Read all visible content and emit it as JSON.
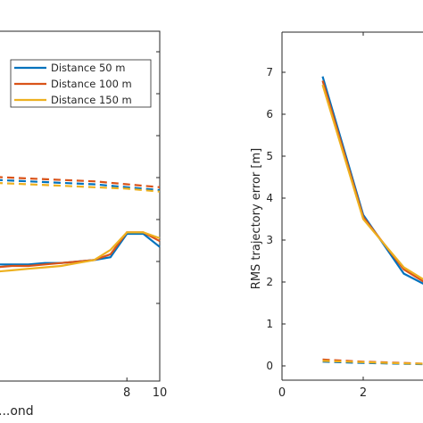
{
  "chart_data": [
    {
      "type": "line",
      "title": "",
      "xlabel": "...ond",
      "ylabel": "",
      "xlim": [
        0,
        10
      ],
      "x_tick_labels": [
        "8",
        "10"
      ],
      "x_ticks": [
        8,
        10
      ],
      "y_ticks_count": 7,
      "grid": false,
      "legend_position": "top-right",
      "series": [
        {
          "name": "Distance 50 m",
          "color": "#0072BD",
          "style": "solid",
          "x": [
            0,
            1,
            2,
            3,
            4,
            5,
            6,
            7,
            8,
            9,
            10
          ],
          "y": [
            2.35,
            2.35,
            2.35,
            2.36,
            2.36,
            2.37,
            2.38,
            2.4,
            2.56,
            2.56,
            2.47
          ]
        },
        {
          "name": "Distance 100 m",
          "color": "#D95319",
          "style": "solid",
          "x": [
            0,
            1,
            2,
            3,
            4,
            5,
            6,
            7,
            8,
            9,
            10
          ],
          "y": [
            2.33,
            2.34,
            2.34,
            2.35,
            2.36,
            2.37,
            2.38,
            2.42,
            2.57,
            2.57,
            2.51
          ]
        },
        {
          "name": "Distance 150 m",
          "color": "#EDB120",
          "style": "solid",
          "x": [
            0,
            1,
            2,
            3,
            4,
            5,
            6,
            7,
            8,
            9,
            10
          ],
          "y": [
            2.3,
            2.31,
            2.32,
            2.33,
            2.34,
            2.36,
            2.38,
            2.45,
            2.57,
            2.57,
            2.53
          ]
        },
        {
          "name": "",
          "color": "#0072BD",
          "style": "dashed",
          "x": [
            0,
            2,
            4,
            6,
            8,
            10
          ],
          "y": [
            2.93,
            2.92,
            2.91,
            2.9,
            2.88,
            2.86
          ]
        },
        {
          "name": "",
          "color": "#D95319",
          "style": "dashed",
          "x": [
            0,
            2,
            4,
            6,
            8,
            10
          ],
          "y": [
            2.95,
            2.94,
            2.93,
            2.92,
            2.9,
            2.88
          ]
        },
        {
          "name": "",
          "color": "#EDB120",
          "style": "dashed",
          "x": [
            0,
            2,
            4,
            6,
            8,
            10
          ],
          "y": [
            2.91,
            2.9,
            2.89,
            2.88,
            2.87,
            2.85
          ]
        }
      ]
    },
    {
      "type": "line",
      "title": "",
      "xlabel": "",
      "ylabel": "RMS trajectory error [m]",
      "xlim": [
        0,
        3.5
      ],
      "ylim": [
        -0.2,
        7.4
      ],
      "x_tick_labels": [
        "0",
        "2"
      ],
      "x_ticks": [
        0,
        2
      ],
      "y_tick_labels": [
        "0",
        "1",
        "2",
        "3",
        "4",
        "5",
        "6",
        "7"
      ],
      "y_ticks": [
        0,
        1,
        2,
        3,
        4,
        5,
        6,
        7
      ],
      "grid": false,
      "series": [
        {
          "name": "Distance 50 m",
          "color": "#0072BD",
          "style": "solid",
          "x": [
            1,
            2,
            3,
            3.5
          ],
          "y": [
            6.9,
            3.6,
            2.2,
            1.95
          ]
        },
        {
          "name": "Distance 100 m",
          "color": "#D95319",
          "style": "solid",
          "x": [
            1,
            2,
            3,
            3.5
          ],
          "y": [
            6.8,
            3.55,
            2.3,
            2.0
          ]
        },
        {
          "name": "Distance 150 m",
          "color": "#EDB120",
          "style": "solid",
          "x": [
            1,
            2,
            3,
            3.5
          ],
          "y": [
            6.7,
            3.5,
            2.35,
            2.05
          ]
        },
        {
          "name": "",
          "color": "#0072BD",
          "style": "dashed",
          "x": [
            1,
            2,
            3,
            3.5
          ],
          "y": [
            0.1,
            0.07,
            0.05,
            0.04
          ]
        },
        {
          "name": "",
          "color": "#D95319",
          "style": "dashed",
          "x": [
            1,
            2,
            3,
            3.5
          ],
          "y": [
            0.15,
            0.1,
            0.07,
            0.05
          ]
        },
        {
          "name": "",
          "color": "#EDB120",
          "style": "dashed",
          "x": [
            1,
            2,
            3,
            3.5
          ],
          "y": [
            0.12,
            0.09,
            0.06,
            0.05
          ]
        }
      ]
    }
  ]
}
